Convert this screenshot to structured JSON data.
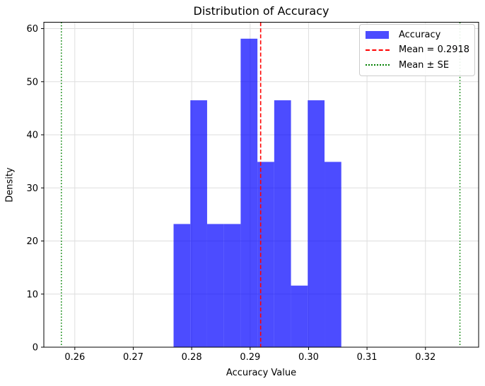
{
  "chart_data": {
    "type": "bar",
    "subtype": "histogram",
    "title": "Distribution of Accuracy",
    "xlabel": "Accuracy Value",
    "ylabel": "Density",
    "xlim": [
      0.2547,
      0.3291
    ],
    "ylim": [
      0,
      61.2
    ],
    "xticks": [
      0.26,
      0.27,
      0.28,
      0.29,
      0.3,
      0.31,
      0.32
    ],
    "xtick_labels": [
      "0.26",
      "0.27",
      "0.28",
      "0.29",
      "0.30",
      "0.31",
      "0.32"
    ],
    "yticks": [
      0,
      10,
      20,
      30,
      40,
      50,
      60
    ],
    "ytick_labels": [
      "0",
      "10",
      "20",
      "30",
      "40",
      "50",
      "60"
    ],
    "grid": true,
    "grid_color": "#dedede",
    "histogram": {
      "label": "Accuracy",
      "color": "#0000ff",
      "opacity": 0.7,
      "bin_edges": [
        0.2769,
        0.27977,
        0.28264,
        0.28551,
        0.28838,
        0.29125,
        0.29412,
        0.29699,
        0.29986,
        0.30273,
        0.3056
      ],
      "counts": [
        2,
        4,
        2,
        2,
        5,
        3,
        4,
        1,
        4,
        3
      ],
      "densities": [
        23.2,
        46.5,
        23.2,
        23.2,
        58.1,
        34.9,
        46.5,
        11.6,
        46.5,
        34.9
      ]
    },
    "mean_line": {
      "x": 0.2918,
      "color": "#ff0000",
      "style": "dashed",
      "label": "Mean = 0.2918"
    },
    "se_lines": {
      "xs": [
        0.2577,
        0.3259
      ],
      "color": "#008000",
      "style": "dotted",
      "label": "Mean ± SE"
    },
    "legend": [
      {
        "marker": "patch",
        "color": "#0000ff",
        "opacity": 0.7,
        "label": "Accuracy"
      },
      {
        "marker": "dashed-line",
        "color": "#ff0000",
        "label": "Mean = 0.2918"
      },
      {
        "marker": "dotted-line",
        "color": "#008000",
        "label": "Mean ± SE"
      }
    ]
  }
}
